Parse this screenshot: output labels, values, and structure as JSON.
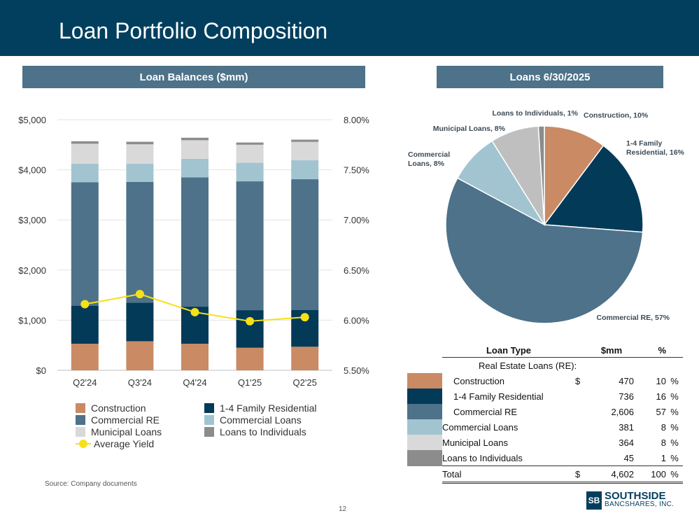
{
  "page": {
    "title": "Loan Portfolio Composition",
    "left_section_title": "Loan Balances ($mm)",
    "right_section_title": "Loans 6/30/2025",
    "source": "Source: Company documents",
    "page_number": "12",
    "logo_top": "SOUTHSIDE",
    "logo_bottom": "BANCSHARES, INC.",
    "logo_mark": "SB"
  },
  "colors": {
    "header_bg": "#023f5e",
    "construction": "#c98a64",
    "family": "#023a58",
    "commercial_re": "#4d7289",
    "commercial_loans": "#a2c4d1",
    "municipal": "#d9d9d9",
    "individuals": "#8c8c8c",
    "yield": "#f7e017"
  },
  "chart_data": [
    {
      "type": "bar",
      "stacked": true,
      "title": "Loan Balances ($mm)",
      "categories": [
        "Q2'24",
        "Q3'24",
        "Q4'24",
        "Q1'25",
        "Q2'25"
      ],
      "series": [
        {
          "name": "Construction",
          "color": "#c98a64",
          "values": [
            530,
            580,
            530,
            450,
            470
          ]
        },
        {
          "name": "1-4 Family Residential",
          "color": "#023a58",
          "values": [
            760,
            770,
            740,
            750,
            736
          ]
        },
        {
          "name": "Commercial RE",
          "color": "#4d7289",
          "values": [
            2460,
            2410,
            2580,
            2570,
            2606
          ]
        },
        {
          "name": "Commercial Loans",
          "color": "#a2c4d1",
          "values": [
            370,
            360,
            370,
            370,
            381
          ]
        },
        {
          "name": "Municipal Loans",
          "color": "#d9d9d9",
          "values": [
            400,
            390,
            370,
            360,
            364
          ]
        },
        {
          "name": "Loans to Individuals",
          "color": "#8c8c8c",
          "values": [
            50,
            50,
            50,
            45,
            45
          ]
        }
      ],
      "line_series": {
        "name": "Average Yield",
        "color": "#f7e017",
        "values": [
          6.16,
          6.26,
          6.08,
          5.99,
          6.03
        ]
      },
      "ylim": [
        0,
        5000
      ],
      "yticks": [
        "$0",
        "$1,000",
        "$2,000",
        "$3,000",
        "$4,000",
        "$5,000"
      ],
      "y2lim": [
        5.5,
        8.0
      ],
      "y2ticks": [
        "5.50%",
        "6.00%",
        "6.50%",
        "7.00%",
        "7.50%",
        "8.00%"
      ],
      "legend": [
        "Construction",
        "1-4 Family Residential",
        "Commercial RE",
        "Commercial Loans",
        "Municipal Loans",
        "Loans to Individuals",
        "Average Yield"
      ],
      "grid": true,
      "legend_position": "bottom"
    },
    {
      "type": "pie",
      "title": "Loans 6/30/2025",
      "slices": [
        {
          "label": "Construction, 10%",
          "value": 470,
          "color": "#c98a64"
        },
        {
          "label": "1-4 Family Residential, 16%",
          "value": 736,
          "color": "#023a58"
        },
        {
          "label": "Commercial RE, 57%",
          "value": 2606,
          "color": "#4d7289"
        },
        {
          "label": "Commercial Loans, 8%",
          "value": 381,
          "color": "#a2c4d1"
        },
        {
          "label": "Municipal Loans, 8%",
          "value": 364,
          "color": "#bfbfbf"
        },
        {
          "label": "Loans to Individuals, 1%",
          "value": 45,
          "color": "#8c8c8c"
        }
      ]
    }
  ],
  "pie_labels": {
    "construction": "Construction, 10%",
    "family_line1": "1-4 Family",
    "family_line2": "Residential, 16%",
    "commercial_re": "Commercial RE, 57%",
    "commercial_line1": "Commercial",
    "commercial_line2": "Loans, 8%",
    "municipal": "Municipal Loans, 8%",
    "individuals": "Loans to Individuals, 1%"
  },
  "legend_items": [
    {
      "label": "Construction",
      "color": "#c98a64"
    },
    {
      "label": "1-4 Family Residential",
      "color": "#023a58"
    },
    {
      "label": "Commercial RE",
      "color": "#4d7289"
    },
    {
      "label": "Commercial Loans",
      "color": "#a2c4d1"
    },
    {
      "label": "Municipal Loans",
      "color": "#d9d9d9"
    },
    {
      "label": "Loans to Individuals",
      "color": "#8c8c8c"
    },
    {
      "label": "Average Yield",
      "color": "#f7e017"
    }
  ],
  "table": {
    "headers": {
      "type": "Loan Type",
      "mm": "$mm",
      "pct": "%"
    },
    "group_label": "Real Estate Loans (RE):",
    "rows": [
      {
        "name": "Construction",
        "cur": "$",
        "mm": "470",
        "pct": "10",
        "pctsign": "%",
        "color": "#c98a64",
        "indent": true
      },
      {
        "name": "1-4 Family Residential",
        "cur": "",
        "mm": "736",
        "pct": "16",
        "pctsign": "%",
        "color": "#023a58",
        "indent": true
      },
      {
        "name": "Commercial RE",
        "cur": "",
        "mm": "2,606",
        "pct": "57",
        "pctsign": "%",
        "color": "#4d7289",
        "indent": true
      },
      {
        "name": "Commercial Loans",
        "cur": "",
        "mm": "381",
        "pct": "8",
        "pctsign": "%",
        "color": "#a2c4d1",
        "indent": false
      },
      {
        "name": "Municipal Loans",
        "cur": "",
        "mm": "364",
        "pct": "8",
        "pctsign": "%",
        "color": "#d9d9d9",
        "indent": false
      },
      {
        "name": "Loans to Individuals",
        "cur": "",
        "mm": "45",
        "pct": "1",
        "pctsign": "%",
        "color": "#8c8c8c",
        "indent": false
      }
    ],
    "total": {
      "name": "Total",
      "cur": "$",
      "mm": "4,602",
      "pct": "100",
      "pctsign": "%"
    }
  }
}
